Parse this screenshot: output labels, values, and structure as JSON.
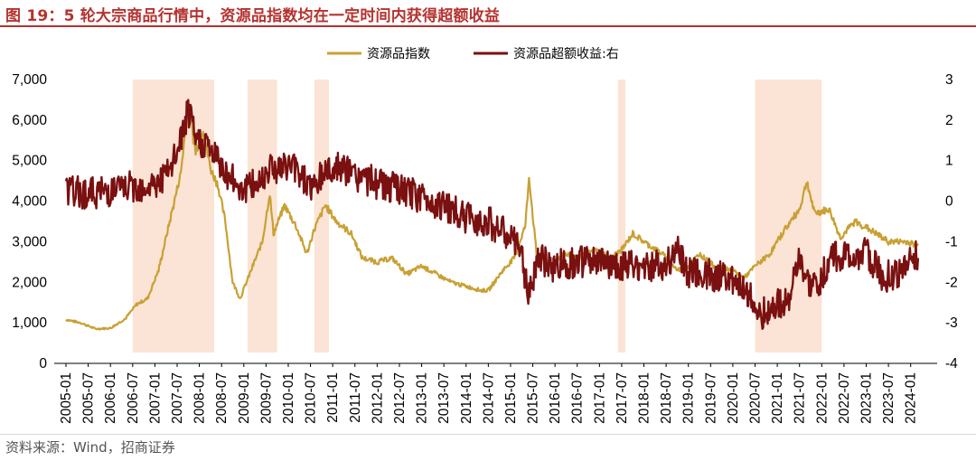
{
  "header": {
    "title": "图 19：5 轮大宗商品行情中，资源品指数均在一定时间内获得超额收益"
  },
  "footer": {
    "source": "资料来源：Wind，招商证券"
  },
  "chart_data": {
    "type": "line",
    "title": "图 19：5 轮大宗商品行情中，资源品指数均在一定时间内获得超额收益",
    "legend_position": "top-center",
    "grid": false,
    "x_ticks": [
      "2005-01",
      "2005-07",
      "2006-01",
      "2006-07",
      "2007-01",
      "2007-07",
      "2008-01",
      "2008-07",
      "2009-01",
      "2009-07",
      "2010-01",
      "2010-07",
      "2011-01",
      "2011-07",
      "2012-01",
      "2012-07",
      "2013-01",
      "2013-07",
      "2014-01",
      "2014-07",
      "2015-01",
      "2015-07",
      "2016-01",
      "2016-07",
      "2017-01",
      "2017-07",
      "2018-01",
      "2018-07",
      "2019-01",
      "2019-07",
      "2020-01",
      "2020-07",
      "2021-01",
      "2021-07",
      "2022-01",
      "2022-07",
      "2023-01",
      "2023-07",
      "2024-01"
    ],
    "y_left": {
      "range": [
        0,
        7000
      ],
      "ticks": [
        "0",
        "1,000",
        "2,000",
        "3,000",
        "4,000",
        "5,000",
        "6,000",
        "7,000"
      ]
    },
    "y_right": {
      "range": [
        -4,
        3
      ],
      "ticks": [
        "-4",
        "-3",
        "-2",
        "-1",
        "0",
        "1",
        "2",
        "3"
      ]
    },
    "highlight_periods": [
      {
        "start": "2006-07",
        "end": "2008-05"
      },
      {
        "start": "2009-02",
        "end": "2009-10"
      },
      {
        "start": "2010-08",
        "end": "2010-12"
      },
      {
        "start": "2017-06",
        "end": "2017-08"
      },
      {
        "start": "2020-07",
        "end": "2022-01"
      }
    ],
    "highlight_color": "#fbe4d5",
    "series": [
      {
        "name": "资源品指数",
        "axis": "left",
        "color": "#c9a033",
        "points": [
          [
            "2005-01",
            1080
          ],
          [
            "2005-05",
            1000
          ],
          [
            "2005-09",
            850
          ],
          [
            "2006-01",
            870
          ],
          [
            "2006-05",
            1100
          ],
          [
            "2006-08",
            1450
          ],
          [
            "2006-11",
            1600
          ],
          [
            "2007-02",
            2300
          ],
          [
            "2007-05",
            3500
          ],
          [
            "2007-08",
            4700
          ],
          [
            "2007-10",
            6400
          ],
          [
            "2007-12",
            5200
          ],
          [
            "2008-02",
            5800
          ],
          [
            "2008-04",
            4800
          ],
          [
            "2008-06",
            4400
          ],
          [
            "2008-08",
            3500
          ],
          [
            "2008-10",
            2000
          ],
          [
            "2008-12",
            1600
          ],
          [
            "2009-03",
            2300
          ],
          [
            "2009-06",
            3000
          ],
          [
            "2009-08",
            4200
          ],
          [
            "2009-09",
            3200
          ],
          [
            "2009-12",
            3900
          ],
          [
            "2010-03",
            3400
          ],
          [
            "2010-06",
            2700
          ],
          [
            "2010-08",
            3300
          ],
          [
            "2010-11",
            3900
          ],
          [
            "2011-02",
            3500
          ],
          [
            "2011-06",
            3200
          ],
          [
            "2011-09",
            2600
          ],
          [
            "2012-01",
            2500
          ],
          [
            "2012-05",
            2600
          ],
          [
            "2012-09",
            2200
          ],
          [
            "2013-01",
            2400
          ],
          [
            "2013-05",
            2200
          ],
          [
            "2013-09",
            2000
          ],
          [
            "2014-01",
            1900
          ],
          [
            "2014-05",
            1800
          ],
          [
            "2014-07",
            1800
          ],
          [
            "2014-11",
            2300
          ],
          [
            "2015-02",
            2600
          ],
          [
            "2015-05",
            3400
          ],
          [
            "2015-06",
            4600
          ],
          [
            "2015-08",
            2700
          ],
          [
            "2015-12",
            2400
          ],
          [
            "2016-03",
            2700
          ],
          [
            "2016-07",
            2600
          ],
          [
            "2016-12",
            2800
          ],
          [
            "2017-04",
            2600
          ],
          [
            "2017-07",
            2800
          ],
          [
            "2017-10",
            3200
          ],
          [
            "2018-01",
            3000
          ],
          [
            "2018-06",
            2700
          ],
          [
            "2018-10",
            2300
          ],
          [
            "2019-01",
            2400
          ],
          [
            "2019-04",
            2700
          ],
          [
            "2019-08",
            2400
          ],
          [
            "2020-01",
            2300
          ],
          [
            "2020-04",
            2100
          ],
          [
            "2020-07",
            2400
          ],
          [
            "2020-11",
            2700
          ],
          [
            "2021-03",
            3300
          ],
          [
            "2021-07",
            3800
          ],
          [
            "2021-09",
            4500
          ],
          [
            "2021-11",
            3700
          ],
          [
            "2022-03",
            3800
          ],
          [
            "2022-06",
            3100
          ],
          [
            "2022-10",
            3500
          ],
          [
            "2023-02",
            3300
          ],
          [
            "2023-07",
            3000
          ],
          [
            "2023-12",
            3000
          ],
          [
            "2024-03",
            2900
          ]
        ]
      },
      {
        "name": "资源品超额收益:右",
        "axis": "right",
        "color": "#7a1010",
        "points": [
          [
            "2005-01",
            0.25
          ],
          [
            "2005-07",
            0.2
          ],
          [
            "2006-01",
            0.25
          ],
          [
            "2006-07",
            0.35
          ],
          [
            "2007-01",
            0.4
          ],
          [
            "2007-05",
            0.7
          ],
          [
            "2007-08",
            1.5
          ],
          [
            "2007-10",
            2.2
          ],
          [
            "2007-12",
            1.5
          ],
          [
            "2008-03",
            1.4
          ],
          [
            "2008-06",
            1.0
          ],
          [
            "2008-09",
            0.6
          ],
          [
            "2009-01",
            0.3
          ],
          [
            "2009-05",
            0.45
          ],
          [
            "2009-08",
            0.9
          ],
          [
            "2009-11",
            0.8
          ],
          [
            "2010-02",
            0.9
          ],
          [
            "2010-05",
            0.6
          ],
          [
            "2010-08",
            0.3
          ],
          [
            "2010-11",
            0.8
          ],
          [
            "2011-03",
            0.8
          ],
          [
            "2011-08",
            0.6
          ],
          [
            "2012-01",
            0.45
          ],
          [
            "2012-06",
            0.3
          ],
          [
            "2013-01",
            0.1
          ],
          [
            "2013-07",
            -0.1
          ],
          [
            "2014-01",
            -0.4
          ],
          [
            "2014-07",
            -0.5
          ],
          [
            "2015-01",
            -0.9
          ],
          [
            "2015-04",
            -1.3
          ],
          [
            "2015-06",
            -2.4
          ],
          [
            "2015-08",
            -1.4
          ],
          [
            "2015-12",
            -1.6
          ],
          [
            "2016-06",
            -1.5
          ],
          [
            "2017-01",
            -1.5
          ],
          [
            "2017-07",
            -1.6
          ],
          [
            "2018-01",
            -1.6
          ],
          [
            "2018-06",
            -1.6
          ],
          [
            "2018-10",
            -1.2
          ],
          [
            "2019-01",
            -1.8
          ],
          [
            "2019-06",
            -1.8
          ],
          [
            "2020-01",
            -1.9
          ],
          [
            "2020-06",
            -2.3
          ],
          [
            "2020-07",
            -2.9
          ],
          [
            "2020-12",
            -2.6
          ],
          [
            "2021-04",
            -2.4
          ],
          [
            "2021-07",
            -1.5
          ],
          [
            "2021-10",
            -2.2
          ],
          [
            "2022-01",
            -1.9
          ],
          [
            "2022-04",
            -1.3
          ],
          [
            "2022-09",
            -1.4
          ],
          [
            "2023-01",
            -1.3
          ],
          [
            "2023-06",
            -1.9
          ],
          [
            "2023-11",
            -1.7
          ],
          [
            "2024-02",
            -1.3
          ],
          [
            "2024-03",
            -1.4
          ]
        ]
      }
    ]
  }
}
